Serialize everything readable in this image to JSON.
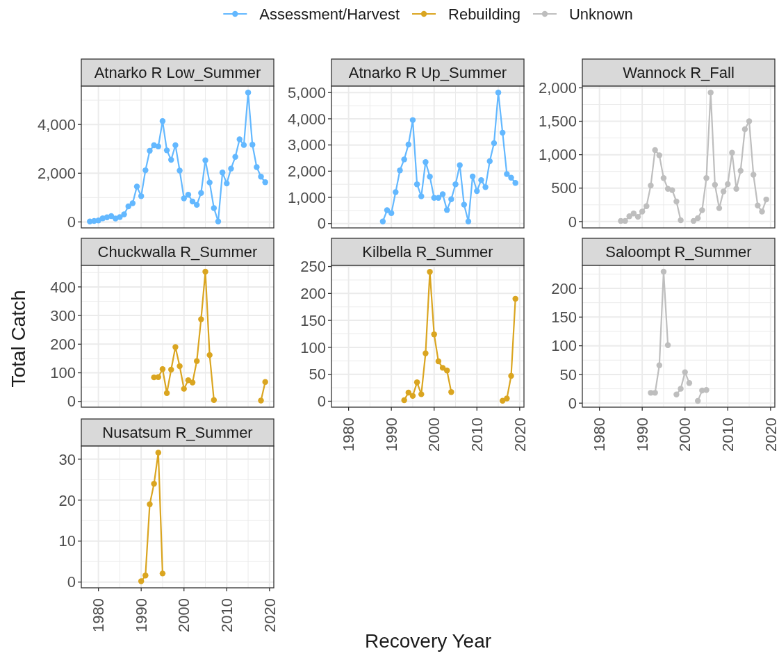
{
  "chart_data": [
    {
      "type": "line",
      "title": "Atnarko R Low_Summer",
      "x": [
        1978,
        1979,
        1980,
        1981,
        1982,
        1983,
        1984,
        1985,
        1986,
        1987,
        1988,
        1989,
        1990,
        1991,
        1992,
        1993,
        1994,
        1995,
        1996,
        1997,
        1998,
        1999,
        2000,
        2001,
        2002,
        2003,
        2004,
        2005,
        2006,
        2007,
        2008,
        2009,
        2010,
        2011,
        2012,
        2013,
        2014,
        2015,
        2016,
        2017,
        2018,
        2019
      ],
      "series": [
        {
          "name": "Assessment/Harvest",
          "color": "#63B8FF",
          "values": [
            20,
            40,
            60,
            150,
            190,
            240,
            140,
            200,
            310,
            640,
            770,
            1450,
            1060,
            2120,
            2920,
            3150,
            3100,
            4140,
            2940,
            2550,
            3150,
            2110,
            970,
            1120,
            840,
            700,
            1190,
            2530,
            1620,
            570,
            20,
            2030,
            1580,
            2190,
            2670,
            3390,
            3160,
            5310,
            3170,
            2250,
            1860,
            1630
          ]
        }
      ],
      "xlim": [
        1976,
        2021
      ],
      "xticks": [
        1980,
        1990,
        2000,
        2010,
        2020
      ],
      "ylim": [
        -245,
        5575
      ],
      "yticks": [
        0,
        {
          "value": 2000,
          "label": "2,000"
        },
        {
          "value": 4000,
          "label": "4,000"
        }
      ],
      "tick_labels": "y",
      "grid": true,
      "marker": "circle"
    },
    {
      "type": "line",
      "title": "Atnarko R Up_Summer",
      "legend": "top",
      "x": [
        1988,
        1989,
        1990,
        1991,
        1992,
        1993,
        1994,
        1995,
        1996,
        1997,
        1998,
        1999,
        2000,
        2001,
        2002,
        2003,
        2004,
        2005,
        2006,
        2007,
        2008,
        2009,
        2010,
        2011,
        2012,
        2013,
        2014,
        2015,
        2016,
        2017,
        2018,
        2019
      ],
      "series": [
        {
          "name": "Assessment/Harvest",
          "color": "#63B8FF",
          "values": [
            80,
            510,
            400,
            1200,
            2030,
            2450,
            3020,
            3950,
            1500,
            1040,
            2350,
            1790,
            980,
            980,
            1120,
            520,
            930,
            1500,
            2230,
            720,
            80,
            1800,
            1240,
            1660,
            1390,
            2380,
            3070,
            5000,
            3470,
            1890,
            1750,
            1550
          ]
        }
      ],
      "xlim": [
        1976,
        2021
      ],
      "xticks": [
        1980,
        1990,
        2000,
        2010,
        2020
      ],
      "ylim": [
        -166,
        5246
      ],
      "yticks": [
        0,
        {
          "value": 1000,
          "label": "1,000"
        },
        {
          "value": 2000,
          "label": "2,000"
        },
        {
          "value": 3000,
          "label": "3,000"
        },
        {
          "value": 4000,
          "label": "4,000"
        },
        {
          "value": 5000,
          "label": "5,000"
        }
      ],
      "tick_labels": "y",
      "grid": true,
      "marker": "circle"
    },
    {
      "type": "line",
      "title": "Wannock R_Fall",
      "x": [
        1985,
        1986,
        1987,
        1988,
        1989,
        1990,
        1991,
        1992,
        1993,
        1994,
        1995,
        1996,
        1997,
        1998,
        1999,
        2000,
        2001,
        2002,
        2003,
        2004,
        2005,
        2006,
        2007,
        2008,
        2009,
        2010,
        2011,
        2012,
        2013,
        2014,
        2015,
        2016,
        2017,
        2018,
        2019
      ],
      "series": [
        {
          "name": "Unknown",
          "color": "#BEBEBE",
          "values": [
            10,
            10,
            80,
            120,
            70,
            150,
            230,
            540,
            1070,
            990,
            650,
            490,
            470,
            300,
            20,
            null,
            null,
            10,
            50,
            170,
            650,
            1930,
            550,
            200,
            450,
            560,
            1030,
            490,
            760,
            1380,
            1500,
            700,
            240,
            150,
            330
          ]
        }
      ],
      "xlim": [
        1976,
        2021
      ],
      "xticks": [
        1980,
        1990,
        2000,
        2010,
        2020
      ],
      "ylim": [
        -95,
        2025
      ],
      "yticks": [
        0,
        500,
        {
          "value": 1000,
          "label": "1,000"
        },
        {
          "value": 1500,
          "label": "1,500"
        },
        {
          "value": 2000,
          "label": "2,000"
        }
      ],
      "tick_labels": "y",
      "grid": true,
      "marker": "circle"
    },
    {
      "type": "line",
      "title": "Chuckwalla R_Summer",
      "ylabel": "Total Catch",
      "x": [
        1993,
        1994,
        1995,
        1996,
        1997,
        1998,
        1999,
        2000,
        2001,
        2002,
        2003,
        2004,
        2005,
        2006,
        2007,
        2008,
        2009,
        2010,
        2011,
        2012,
        2013,
        2014,
        2015,
        2016,
        2017,
        2018,
        2019
      ],
      "series": [
        {
          "name": "Rebuilding",
          "color": "#DAA520",
          "values": [
            84,
            85,
            113,
            29,
            111,
            190,
            123,
            44,
            74,
            66,
            141,
            287,
            453,
            162,
            5,
            null,
            null,
            null,
            null,
            null,
            null,
            null,
            null,
            null,
            null,
            3,
            68
          ]
        }
      ],
      "xlim": [
        1976,
        2021
      ],
      "xticks": [
        1980,
        1990,
        2000,
        2010,
        2020
      ],
      "ylim": [
        -20,
        475
      ],
      "yticks": [
        0,
        100,
        200,
        300,
        400
      ],
      "tick_labels": "y",
      "grid": true,
      "marker": "circle"
    },
    {
      "type": "line",
      "title": "Kilbella R_Summer",
      "xlabel": "Recovery Year",
      "x": [
        1993,
        1994,
        1995,
        1996,
        1997,
        1998,
        1999,
        2000,
        2001,
        2002,
        2003,
        2004,
        2005,
        2006,
        2007,
        2008,
        2009,
        2010,
        2011,
        2012,
        2013,
        2014,
        2015,
        2016,
        2017,
        2018,
        2019
      ],
      "series": [
        {
          "name": "Rebuilding",
          "color": "#DAA520",
          "values": [
            2,
            16,
            10,
            35,
            13,
            89,
            240,
            124,
            74,
            62,
            57,
            17,
            null,
            null,
            null,
            null,
            null,
            null,
            null,
            null,
            null,
            null,
            null,
            1,
            5,
            47,
            190
          ]
        }
      ],
      "xlim": [
        1976,
        2021
      ],
      "xticks": [
        1980,
        1990,
        2000,
        2010,
        2020
      ],
      "ylim": [
        -11,
        252
      ],
      "yticks": [
        0,
        50,
        100,
        150,
        200,
        250
      ],
      "grid": true,
      "marker": "circle"
    },
    {
      "type": "line",
      "title": "Saloompt R_Summer",
      "x": [
        1992,
        1993,
        1994,
        1995,
        1996,
        1997,
        1998,
        1999,
        2000,
        2001,
        2002,
        2003,
        2004,
        2005
      ],
      "series": [
        {
          "name": "Unknown",
          "color": "#BEBEBE",
          "values": [
            18,
            18,
            66,
            229,
            101,
            null,
            15,
            25,
            54,
            35,
            null,
            4,
            22,
            23
          ]
        }
      ],
      "xlim": [
        1976,
        2021
      ],
      "xticks": [
        1980,
        1990,
        2000,
        2010,
        2020
      ],
      "ylim": [
        -7,
        240
      ],
      "yticks": [
        0,
        50,
        100,
        150,
        200
      ],
      "grid": true,
      "marker": "circle"
    },
    {
      "type": "line",
      "title": "Nusatsum R_Summer",
      "x": [
        1990,
        1991,
        1992,
        1993,
        1994,
        1995
      ],
      "series": [
        {
          "name": "Rebuilding",
          "color": "#DAA520",
          "values": [
            0.2,
            1.6,
            19,
            24,
            31.6,
            2.1
          ]
        }
      ],
      "xlim": [
        1976,
        2021
      ],
      "xticks": [
        1980,
        1990,
        2000,
        2010,
        2020
      ],
      "ylim": [
        -1.4,
        33.2
      ],
      "yticks": [
        0,
        10,
        20,
        30
      ],
      "grid": true,
      "marker": "circle"
    }
  ]
}
